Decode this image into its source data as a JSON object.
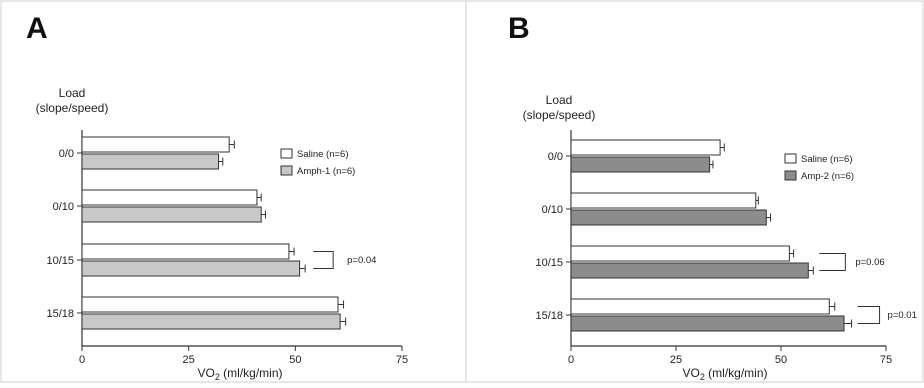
{
  "chart_data": [
    {
      "type": "bar",
      "orientation": "horizontal",
      "panel_label": "A",
      "ylabel": "Load\n(slope/speed)",
      "xlabel": "VO2 (ml/kg/min)",
      "xlim": [
        0,
        75
      ],
      "xticks": [
        0,
        25,
        50,
        75
      ],
      "categories": [
        "0/0",
        "0/10",
        "10/15",
        "15/18"
      ],
      "series": [
        {
          "name": "Saline (n=6)",
          "color": "#ffffff",
          "values": [
            34.5,
            41,
            48.5,
            60
          ],
          "errors": [
            1.2,
            1.0,
            1.2,
            1.3
          ]
        },
        {
          "name": "Amph-1 (n=6)",
          "color": "#c8c8c8",
          "values": [
            32,
            42,
            51,
            60.5
          ],
          "errors": [
            1.0,
            1.0,
            1.3,
            1.3
          ]
        }
      ],
      "legend_position": "right",
      "annotations": [
        {
          "category": "10/15",
          "text": "p=0.04"
        }
      ]
    },
    {
      "type": "bar",
      "orientation": "horizontal",
      "panel_label": "B",
      "ylabel": "Load\n(slope/speed)",
      "xlabel": "VO2 (ml/kg/min)",
      "xlim": [
        0,
        75
      ],
      "xticks": [
        0,
        25,
        50,
        75
      ],
      "categories": [
        "0/0",
        "0/10",
        "10/15",
        "15/18"
      ],
      "series": [
        {
          "name": "Saline (n=6)",
          "color": "#ffffff",
          "values": [
            35.5,
            44,
            52,
            61.5
          ],
          "errors": [
            1.0,
            0.6,
            1.0,
            1.3
          ]
        },
        {
          "name": "Amp-2 (n=6)",
          "color": "#8c8c8c",
          "values": [
            33,
            46.5,
            56.5,
            65
          ],
          "errors": [
            0.8,
            1.0,
            1.2,
            1.8
          ]
        }
      ],
      "legend_position": "right",
      "annotations": [
        {
          "category": "10/15",
          "text": "p=0.06"
        },
        {
          "category": "15/18",
          "text": "p=0.01"
        }
      ]
    }
  ]
}
